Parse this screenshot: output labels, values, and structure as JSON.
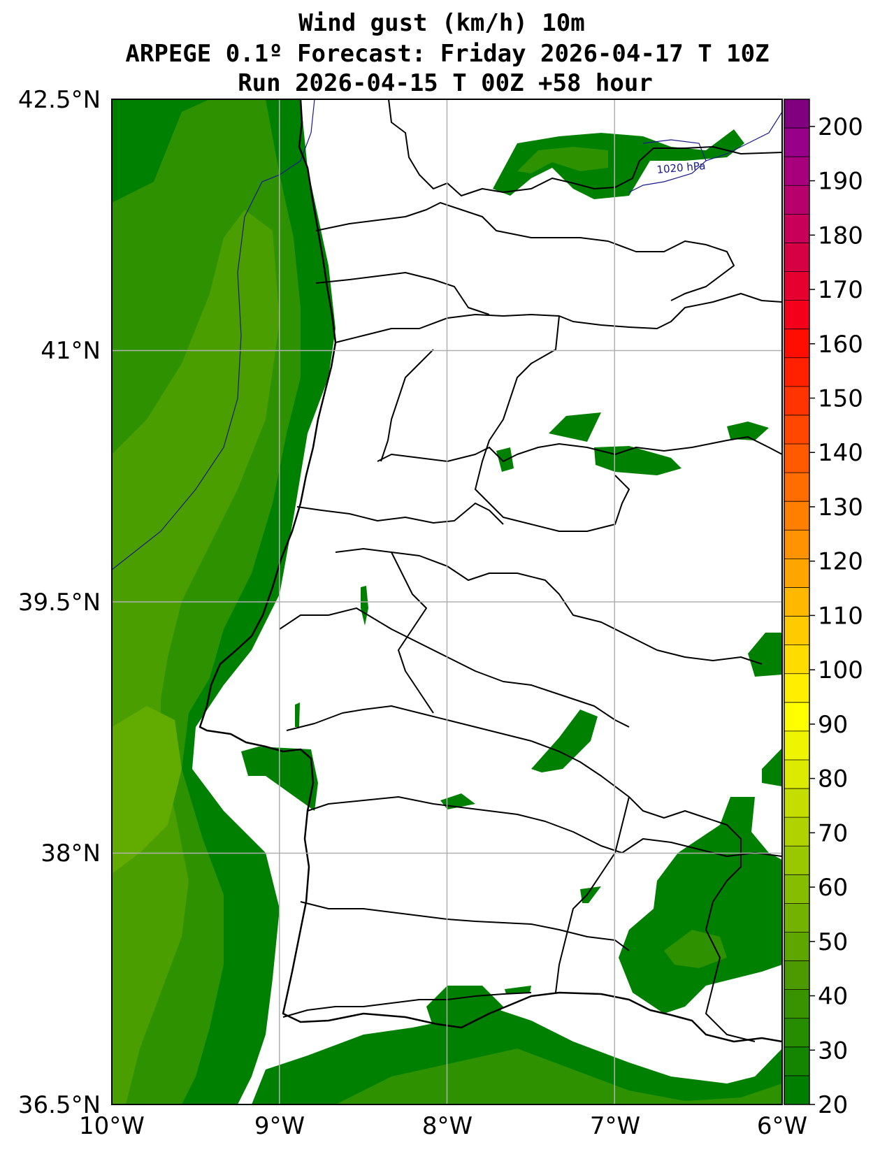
{
  "title": {
    "line1": "Wind gust (km/h) 10m",
    "line2": "ARPEGE 0.1º Forecast: Friday 2026-04-17 T 10Z",
    "line3": "Run 2026-04-15 T 00Z +58 hour"
  },
  "map": {
    "lon_range": [
      -10,
      -6
    ],
    "lat_range": [
      36.5,
      42.5
    ],
    "x_ticks": [
      {
        "value": -10,
        "label": "10°W"
      },
      {
        "value": -9,
        "label": "9°W"
      },
      {
        "value": -8,
        "label": "8°W"
      },
      {
        "value": -7,
        "label": "7°W"
      },
      {
        "value": -6,
        "label": "6°W"
      }
    ],
    "y_ticks": [
      {
        "value": 42.5,
        "label": "42.5°N"
      },
      {
        "value": 41,
        "label": "41°N"
      },
      {
        "value": 39.5,
        "label": "39.5°N"
      },
      {
        "value": 38,
        "label": "38°N"
      },
      {
        "value": 36.5,
        "label": "36.5°N"
      }
    ],
    "isobar_label": "1020 hPa",
    "grid": true
  },
  "colorbar": {
    "min": 20,
    "max": 205,
    "labels": [
      "20",
      "30",
      "40",
      "50",
      "60",
      "70",
      "80",
      "90",
      "100",
      "110",
      "120",
      "130",
      "140",
      "150",
      "160",
      "170",
      "180",
      "190",
      "200"
    ],
    "colors": [
      "#007e00",
      "#138500",
      "#268c00",
      "#399300",
      "#4c9a00",
      "#5fa700",
      "#73b200",
      "#86bd00",
      "#9ac800",
      "#b0d300",
      "#c5de00",
      "#dbea00",
      "#eef500",
      "#ffff00",
      "#ffee00",
      "#ffdc00",
      "#ffca00",
      "#ffb800",
      "#ffa500",
      "#ff9200",
      "#ff8000",
      "#ff6d00",
      "#ff5a00",
      "#ff4700",
      "#ff3400",
      "#ff2100",
      "#ff0e00",
      "#f5001a",
      "#e60030",
      "#d60045",
      "#c8005a",
      "#b8006c",
      "#a8007c",
      "#98008a",
      "#800080"
    ]
  },
  "colors": {
    "gust_20": "#008000",
    "gust_25": "#1a8a00",
    "gust_30": "#2e9200",
    "gust_35": "#4a9e00",
    "gust_40": "#62ab00",
    "land": "#ffffff",
    "isobar": "#1a1a8c"
  }
}
